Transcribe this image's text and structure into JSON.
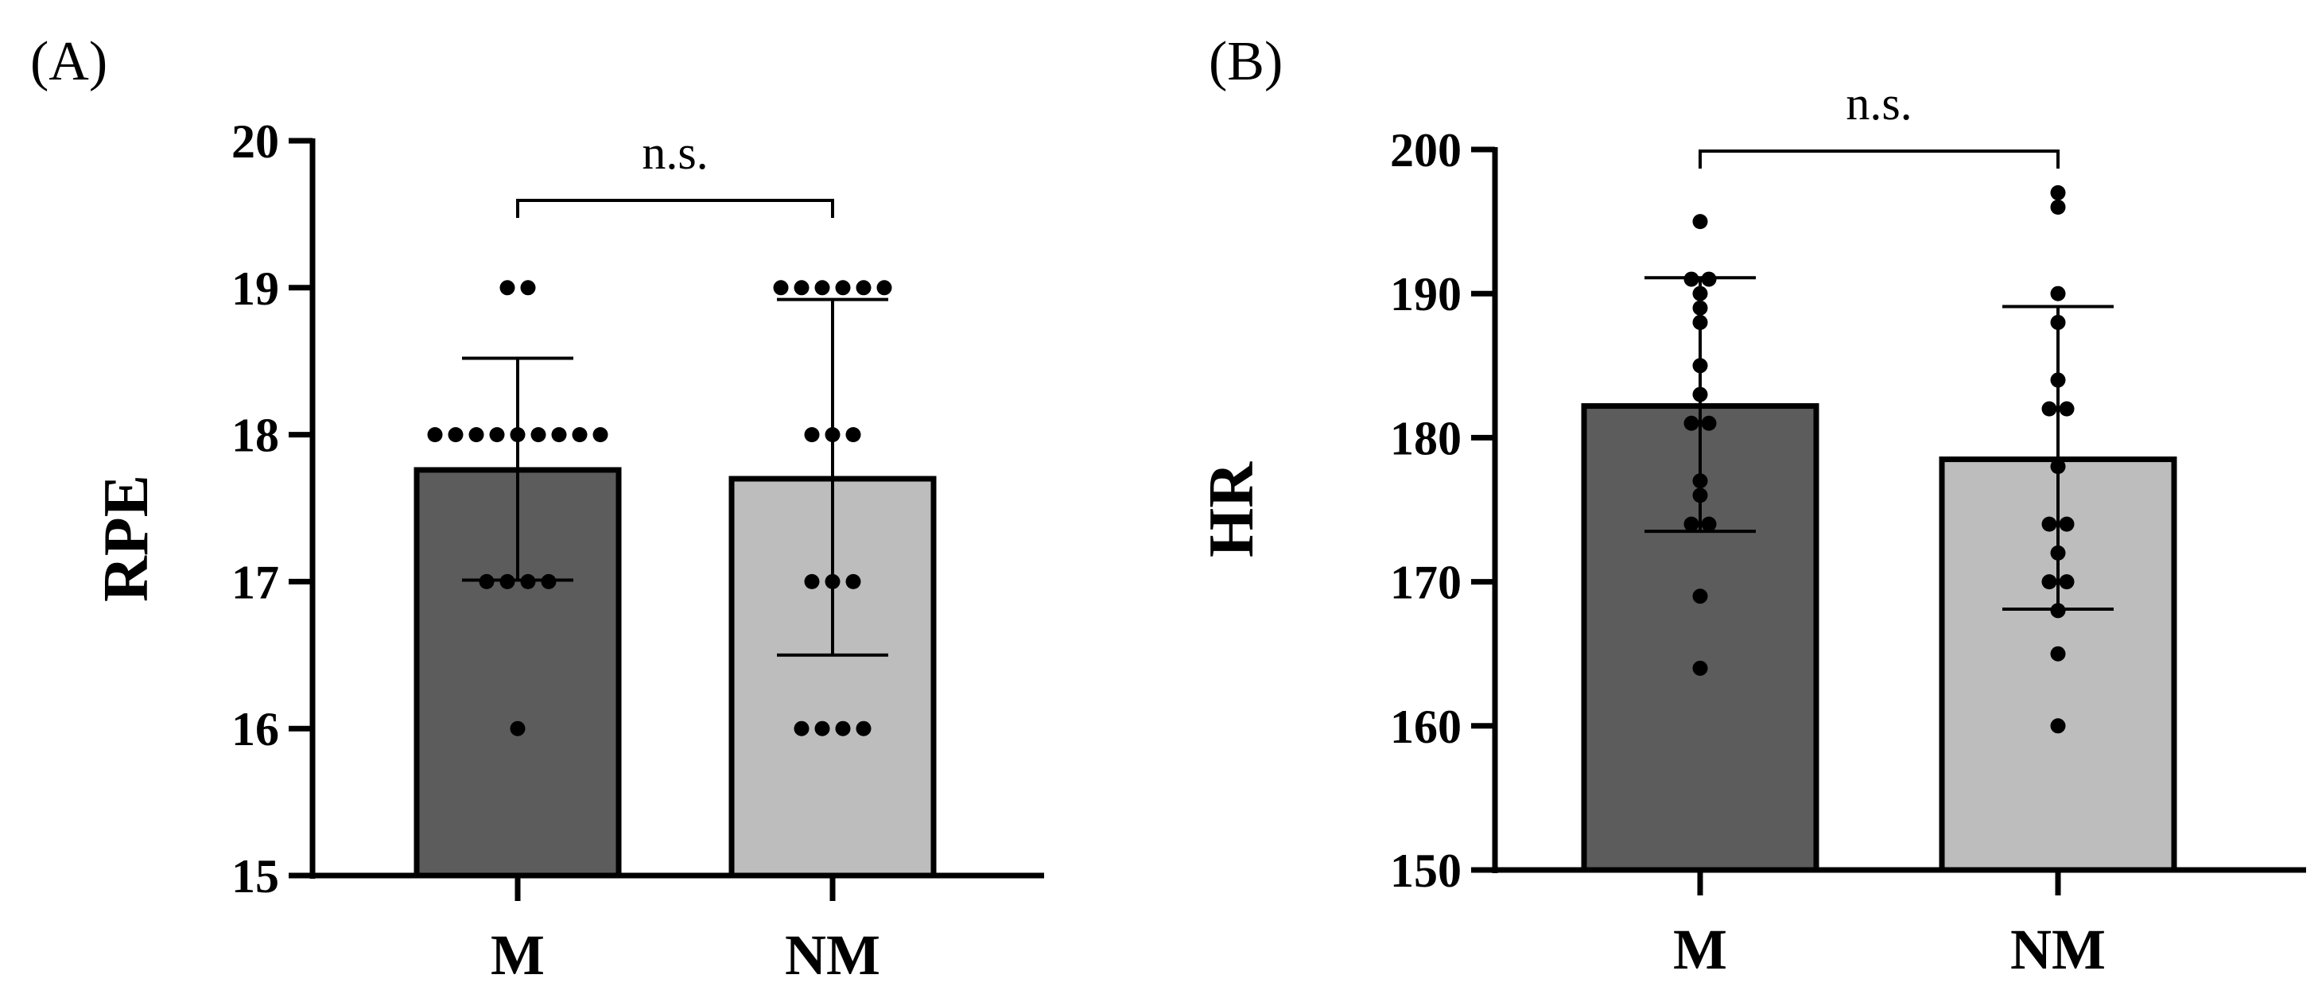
{
  "chart_data": [
    {
      "type": "bar",
      "panel_label": "(A)",
      "title": "",
      "xlabel": "",
      "ylabel": "RPE",
      "ylim": [
        15,
        20
      ],
      "yticks": [
        15,
        16,
        17,
        18,
        19,
        20
      ],
      "categories": [
        "M",
        "NM"
      ],
      "values": [
        17.76,
        17.7
      ],
      "error_low": [
        17.01,
        16.5
      ],
      "error_high": [
        18.52,
        18.92
      ],
      "bar_colors": [
        "#5c5c5c",
        "#bdbdbd"
      ],
      "points": [
        [
          19,
          19,
          18,
          18,
          18,
          18,
          18,
          18,
          18,
          18,
          18,
          17,
          17,
          17,
          17,
          16
        ],
        [
          19,
          19,
          19,
          19,
          19,
          19,
          18,
          18,
          18,
          17,
          17,
          17,
          16,
          16,
          16,
          16
        ]
      ],
      "significance": "n.s."
    },
    {
      "type": "bar",
      "panel_label": "(B)",
      "title": "",
      "xlabel": "",
      "ylabel": "HR",
      "ylim": [
        150,
        200
      ],
      "yticks": [
        150,
        160,
        170,
        180,
        190,
        200
      ],
      "categories": [
        "M",
        "NM"
      ],
      "values": [
        182.2,
        178.5
      ],
      "error_low": [
        173.5,
        168.1
      ],
      "error_high": [
        191.1,
        189.1
      ],
      "bar_colors": [
        "#5c5c5c",
        "#bdbdbd"
      ],
      "points": [
        [
          195,
          191,
          191,
          190,
          189,
          188,
          185,
          183,
          181,
          181,
          177,
          176,
          174,
          174,
          169,
          164
        ],
        [
          197,
          196,
          190,
          188,
          184,
          182,
          182,
          178,
          174,
          174,
          172,
          170,
          170,
          168,
          165,
          160
        ]
      ],
      "significance": "n.s."
    }
  ]
}
